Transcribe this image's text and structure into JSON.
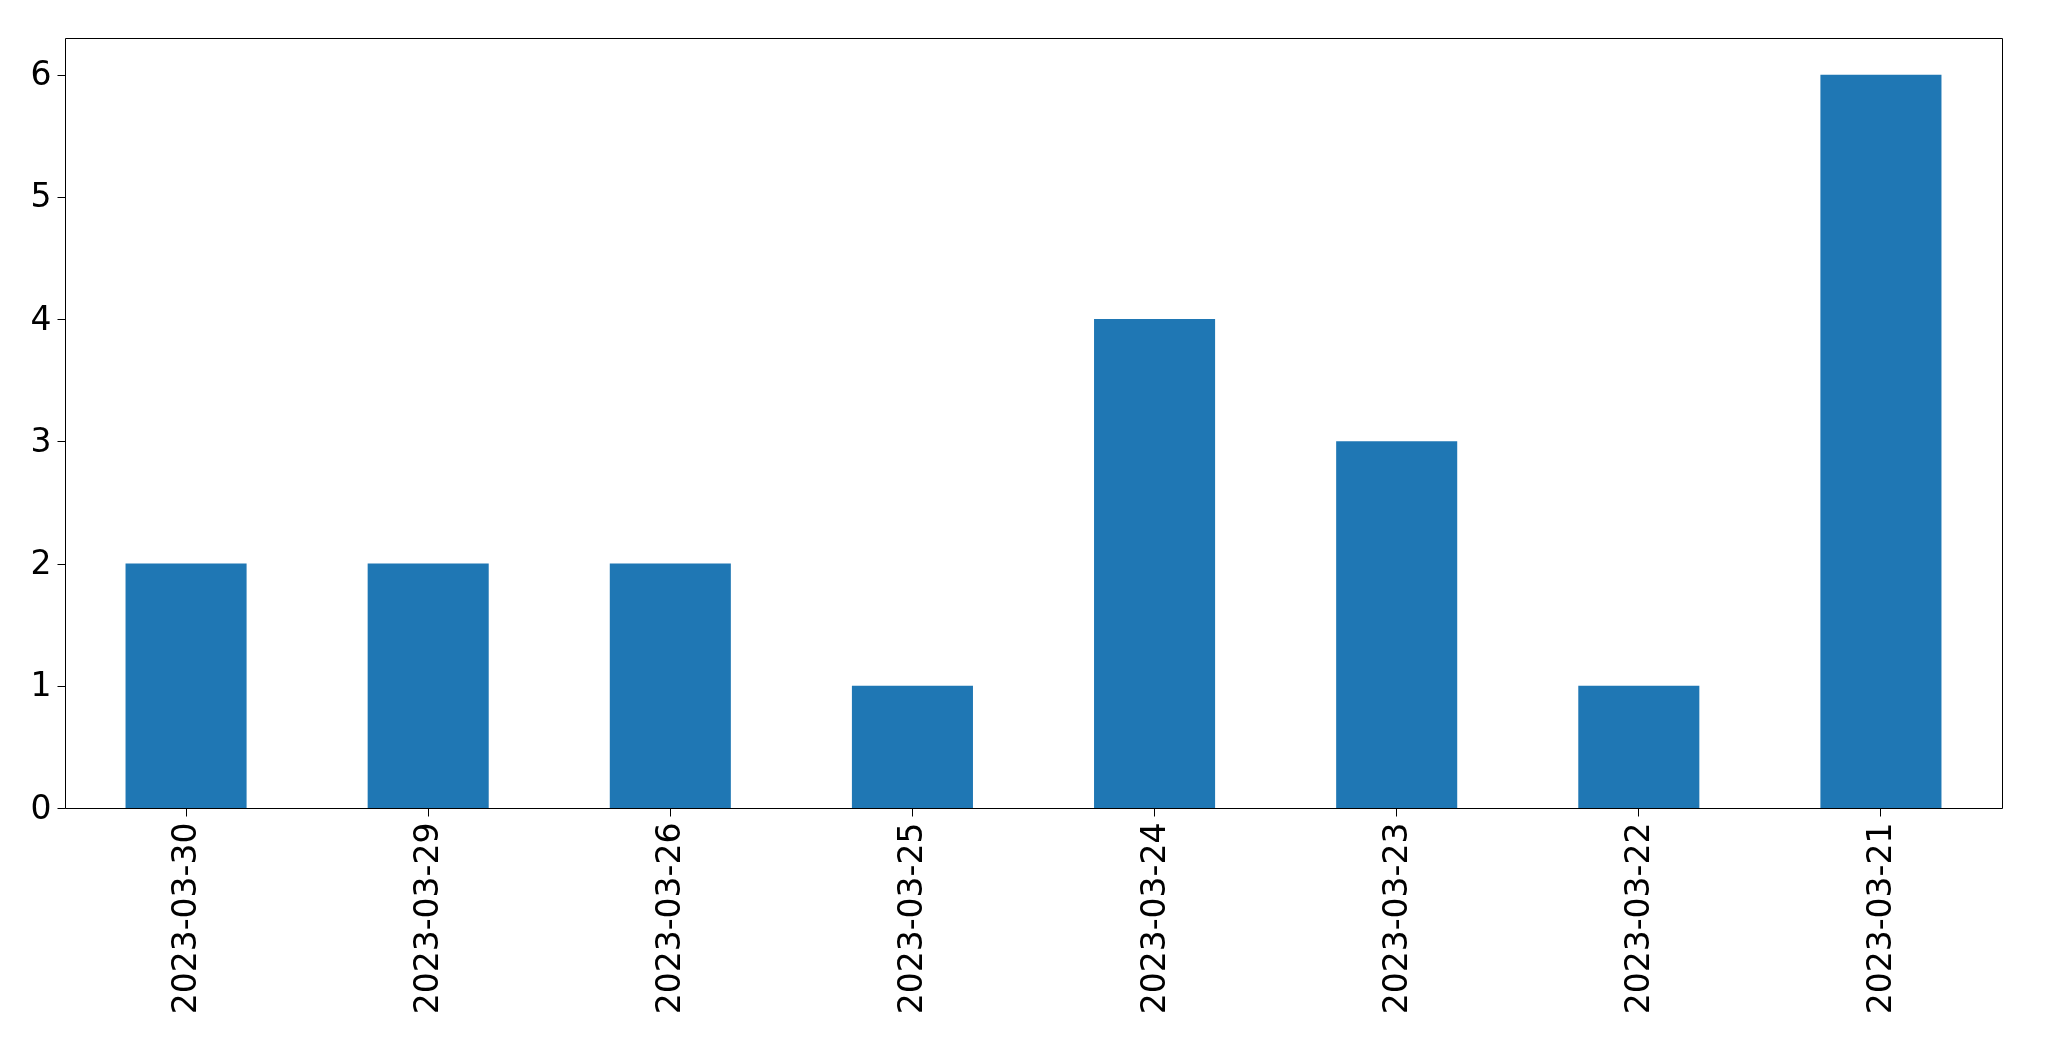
{
  "chart_data": {
    "type": "bar",
    "categories": [
      "2023-03-30",
      "2023-03-29",
      "2023-03-26",
      "2023-03-25",
      "2023-03-24",
      "2023-03-23",
      "2023-03-22",
      "2023-03-21"
    ],
    "values": [
      2,
      2,
      2,
      1,
      4,
      3,
      1,
      6
    ],
    "color": "#1f77b4",
    "ylim": [
      0,
      6.3
    ],
    "yticks": [
      0,
      1,
      2,
      3,
      4,
      5,
      6
    ],
    "grid": false
  }
}
